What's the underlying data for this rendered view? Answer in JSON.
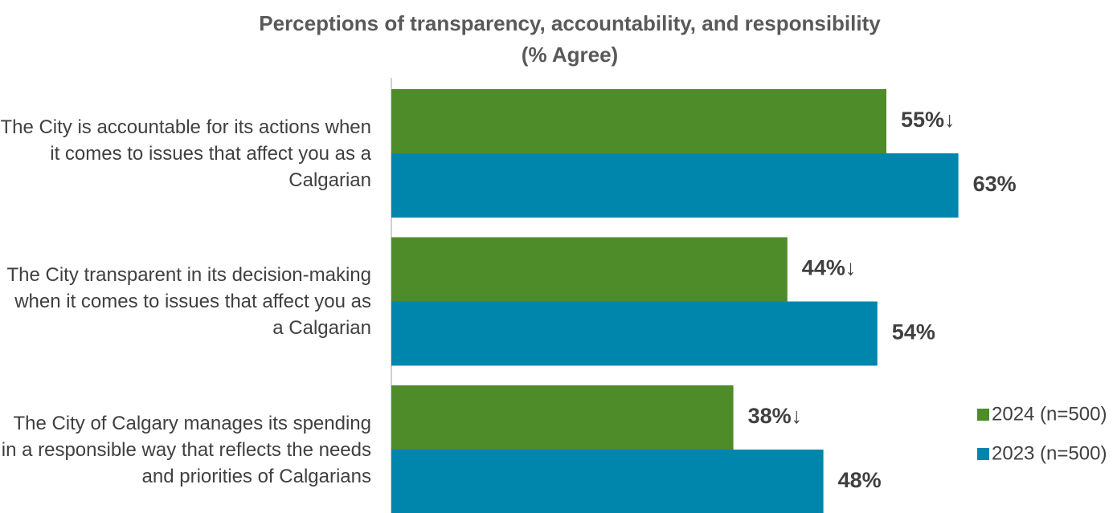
{
  "chart_data": {
    "type": "bar",
    "orientation": "horizontal",
    "title": "Perceptions of transparency, accountability, and responsibility",
    "subtitle": "(% Agree)",
    "categories": [
      "The City is accountable for its actions when it comes to issues that affect you as a Calgarian",
      "The City transparent in its decision-making when it comes to issues that affect you as a Calgarian",
      "The City of Calgary manages its spending in a responsible way that reflects the needs and priorities of Calgarians"
    ],
    "series": [
      {
        "name": "2024 (n=500)",
        "color": "#4e8c2a",
        "values": [
          55,
          44,
          38
        ],
        "value_labels": [
          "55%↓",
          "44%↓",
          "38%↓"
        ]
      },
      {
        "name": "2023 (n=500)",
        "color": "#0086ad",
        "values": [
          63,
          54,
          48
        ],
        "value_labels": [
          "63%",
          "54%",
          "48%"
        ]
      }
    ]
  }
}
